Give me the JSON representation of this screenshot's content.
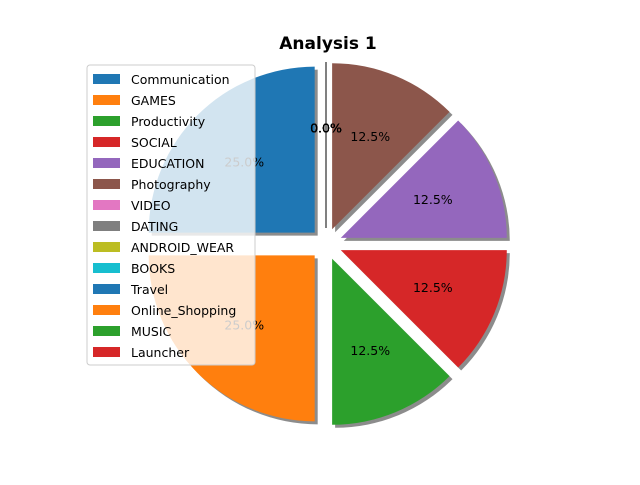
{
  "chart_data": {
    "type": "pie",
    "title": "Analysis 1",
    "legend_position": "upper-left",
    "exploded": true,
    "shadow": true,
    "slices": [
      {
        "label": "Communication",
        "value": 25.0,
        "pct_label": "25.0%",
        "color": "#1f77b4"
      },
      {
        "label": "GAMES",
        "value": 25.0,
        "pct_label": "25.0%",
        "color": "#ff7f0e"
      },
      {
        "label": "Productivity",
        "value": 12.5,
        "pct_label": "12.5%",
        "color": "#2ca02c"
      },
      {
        "label": "SOCIAL",
        "value": 12.5,
        "pct_label": "12.5%",
        "color": "#d62728"
      },
      {
        "label": "EDUCATION",
        "value": 12.5,
        "pct_label": "12.5%",
        "color": "#9467bd"
      },
      {
        "label": "Photography",
        "value": 12.5,
        "pct_label": "12.5%",
        "color": "#8c564b"
      },
      {
        "label": "VIDEO",
        "value": 0.0,
        "pct_label": "0.0%",
        "color": "#e377c2"
      },
      {
        "label": "DATING",
        "value": 0.0,
        "pct_label": "0.0%",
        "color": "#7f7f7f"
      },
      {
        "label": "ANDROID_WEAR",
        "value": 0.0,
        "pct_label": "0.0%",
        "color": "#bcbd22"
      },
      {
        "label": "BOOKS",
        "value": 0.0,
        "pct_label": "0.0%",
        "color": "#17becf"
      },
      {
        "label": "Travel",
        "value": 0.0,
        "pct_label": "0.0%",
        "color": "#1f77b4"
      },
      {
        "label": "Online_Shopping",
        "value": 0.0,
        "pct_label": "0.0%",
        "color": "#ff7f0e"
      },
      {
        "label": "MUSIC",
        "value": 0.0,
        "pct_label": "0.0%",
        "color": "#2ca02c"
      },
      {
        "label": "Launcher",
        "value": 0.0,
        "pct_label": "0.0%",
        "color": "#d62728"
      }
    ]
  }
}
